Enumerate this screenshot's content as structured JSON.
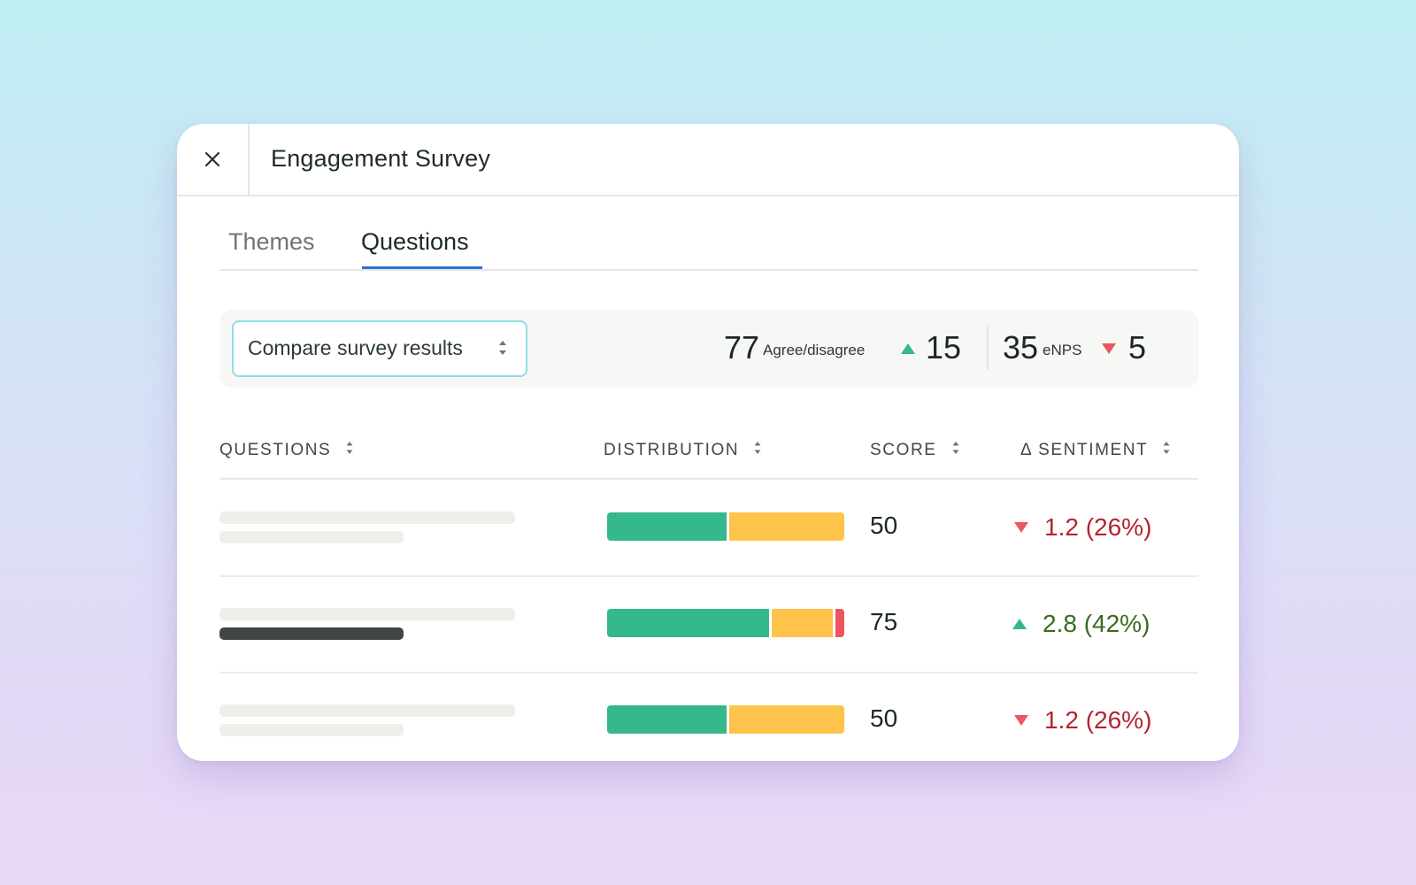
{
  "header": {
    "title": "Engagement Survey",
    "close_icon": "close-icon"
  },
  "tabs": [
    {
      "label": "Themes",
      "active": false
    },
    {
      "label": "Questions",
      "active": true
    }
  ],
  "filter": {
    "compare_label": "Compare survey results",
    "metrics": [
      {
        "value": "77",
        "label": "Agree/disagree",
        "delta": "15",
        "direction": "up"
      },
      {
        "value": "35",
        "label": "eNPS",
        "delta": "5",
        "direction": "down"
      }
    ]
  },
  "table": {
    "columns": [
      "QUESTIONS",
      "DISTRIBUTION",
      "SCORE",
      "Δ SENTIMENT"
    ],
    "rows": [
      {
        "distribution": [
          {
            "share": 51,
            "color": "#35b88c"
          },
          {
            "share": 49,
            "color": "#fec34a"
          }
        ],
        "score": "50",
        "sentiment": "1.2 (26%)",
        "direction": "down"
      },
      {
        "distribution": [
          {
            "share": 70,
            "color": "#35b88c"
          },
          {
            "share": 26,
            "color": "#fec34a"
          },
          {
            "share": 4,
            "color": "#ef5462"
          }
        ],
        "score": "75",
        "sentiment": "2.8 (42%)",
        "direction": "up"
      },
      {
        "distribution": [
          {
            "share": 51,
            "color": "#35b88c"
          },
          {
            "share": 49,
            "color": "#fec34a"
          }
        ],
        "score": "50",
        "sentiment": "1.2 (26%)",
        "direction": "down"
      }
    ]
  },
  "colors": {
    "positive": "#34b98a",
    "negative": "#ec5762",
    "positive_text": "#3a6b1f",
    "negative_text": "#b5232f",
    "accent": "#2f6fd6",
    "select_border": "#8fdde6"
  }
}
